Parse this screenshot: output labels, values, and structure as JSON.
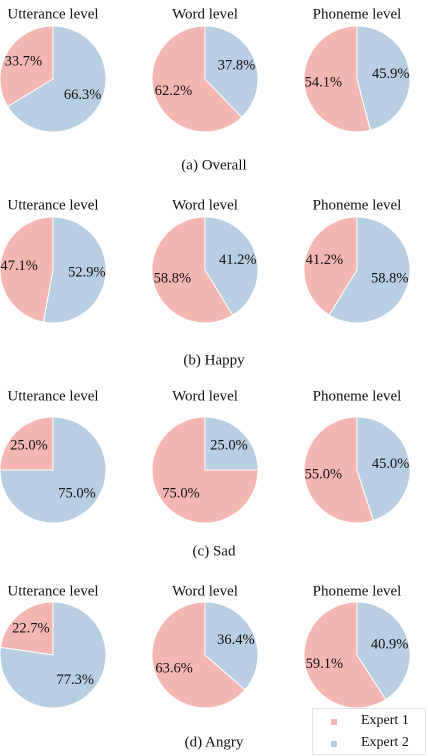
{
  "chart_data": [
    {
      "group": "(a) Overall",
      "charts": [
        {
          "type": "pie",
          "title": "Utterance level",
          "series": [
            {
              "name": "Expert 1",
              "value": 33.7,
              "label": "33.7%"
            },
            {
              "name": "Expert 2",
              "value": 66.3,
              "label": "66.3%"
            }
          ]
        },
        {
          "type": "pie",
          "title": "Word level",
          "series": [
            {
              "name": "Expert 1",
              "value": 62.2,
              "label": "62.2%"
            },
            {
              "name": "Expert 2",
              "value": 37.8,
              "label": "37.8%"
            }
          ]
        },
        {
          "type": "pie",
          "title": "Phoneme level",
          "series": [
            {
              "name": "Expert 1",
              "value": 54.1,
              "label": "54.1%"
            },
            {
              "name": "Expert 2",
              "value": 45.9,
              "label": "45.9%"
            }
          ]
        }
      ]
    },
    {
      "group": "(b) Happy",
      "charts": [
        {
          "type": "pie",
          "title": "Utterance level",
          "series": [
            {
              "name": "Expert 1",
              "value": 47.1,
              "label": "47.1%"
            },
            {
              "name": "Expert 2",
              "value": 52.9,
              "label": "52.9%"
            }
          ]
        },
        {
          "type": "pie",
          "title": "Word level",
          "series": [
            {
              "name": "Expert 1",
              "value": 58.8,
              "label": "58.8%"
            },
            {
              "name": "Expert 2",
              "value": 41.2,
              "label": "41.2%"
            }
          ]
        },
        {
          "type": "pie",
          "title": "Phoneme level",
          "series": [
            {
              "name": "Expert 1",
              "value": 41.2,
              "label": "41.2%"
            },
            {
              "name": "Expert 2",
              "value": 58.8,
              "label": "58.8%"
            }
          ]
        }
      ]
    },
    {
      "group": "(c) Sad",
      "charts": [
        {
          "type": "pie",
          "title": "Utterance level",
          "series": [
            {
              "name": "Expert 1",
              "value": 25.0,
              "label": "25.0%"
            },
            {
              "name": "Expert 2",
              "value": 75.0,
              "label": "75.0%"
            }
          ]
        },
        {
          "type": "pie",
          "title": "Word level",
          "series": [
            {
              "name": "Expert 1",
              "value": 75.0,
              "label": "75.0%"
            },
            {
              "name": "Expert 2",
              "value": 25.0,
              "label": "25.0%"
            }
          ]
        },
        {
          "type": "pie",
          "title": "Phoneme level",
          "series": [
            {
              "name": "Expert 1",
              "value": 55.0,
              "label": "55.0%"
            },
            {
              "name": "Expert 2",
              "value": 45.0,
              "label": "45.0%"
            }
          ]
        }
      ]
    },
    {
      "group": "(d) Angry",
      "charts": [
        {
          "type": "pie",
          "title": "Utterance level",
          "series": [
            {
              "name": "Expert 1",
              "value": 22.7,
              "label": "22.7%"
            },
            {
              "name": "Expert 2",
              "value": 77.3,
              "label": "77.3%"
            }
          ]
        },
        {
          "type": "pie",
          "title": "Word level",
          "series": [
            {
              "name": "Expert 1",
              "value": 63.6,
              "label": "63.6%"
            },
            {
              "name": "Expert 2",
              "value": 36.4,
              "label": "36.4%"
            }
          ]
        },
        {
          "type": "pie",
          "title": "Phoneme level",
          "series": [
            {
              "name": "Expert 1",
              "value": 59.1,
              "label": "59.1%"
            },
            {
              "name": "Expert 2",
              "value": 40.9,
              "label": "40.9%"
            }
          ]
        }
      ]
    }
  ],
  "legend": {
    "position": "bottom-right",
    "items": [
      {
        "name": "Expert 1",
        "color": "#f4b6b0"
      },
      {
        "name": "Expert 2",
        "color": "#b7cee3"
      }
    ]
  },
  "colors": {
    "Expert 1": "#f4b6b0",
    "Expert 2": "#b7cee3"
  }
}
